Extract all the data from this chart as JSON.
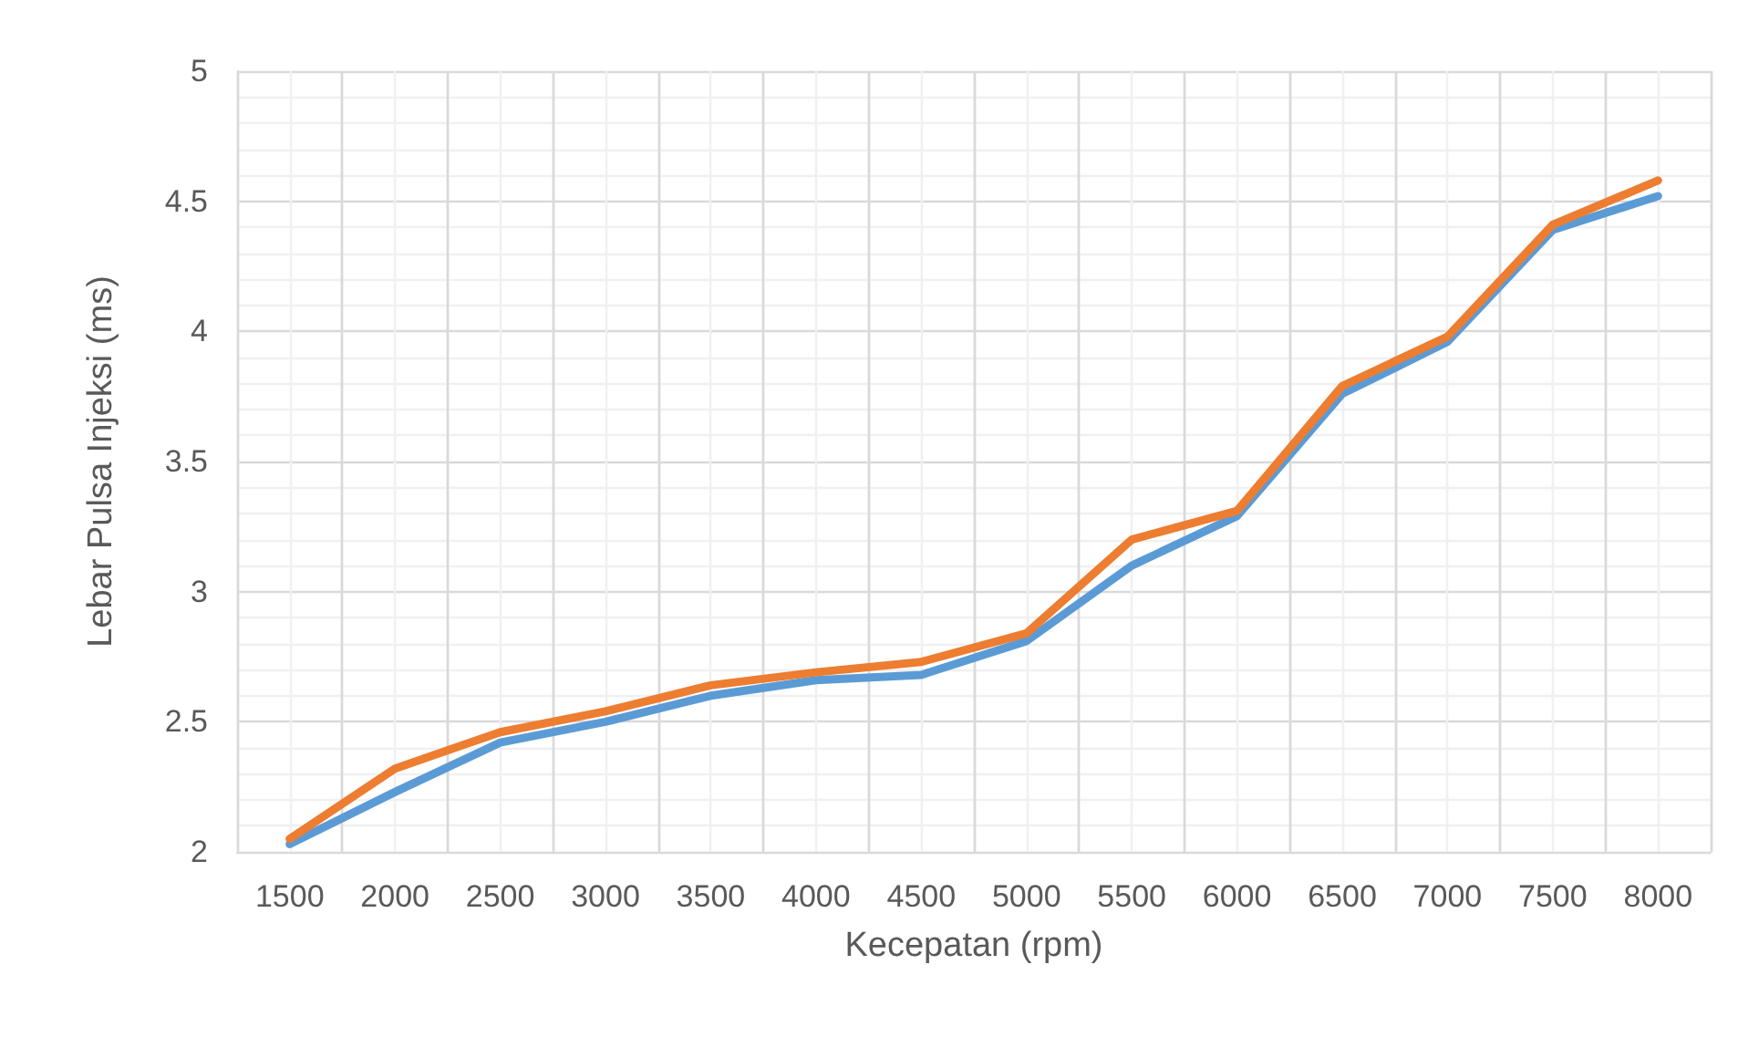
{
  "chart_data": {
    "type": "line",
    "xlabel": "Kecepatan (rpm)",
    "ylabel": "Lebar Pulsa Injeksi (ms)",
    "categories": [
      "1500",
      "2000",
      "2500",
      "3000",
      "3500",
      "4000",
      "4500",
      "5000",
      "5500",
      "6000",
      "6500",
      "7000",
      "7500",
      "8000"
    ],
    "series": [
      {
        "color": "#5b9bd5",
        "values": [
          2.03,
          2.23,
          2.42,
          2.5,
          2.6,
          2.66,
          2.68,
          2.81,
          3.1,
          3.29,
          3.76,
          3.96,
          4.39,
          4.52
        ]
      },
      {
        "color": "#ed7d31",
        "values": [
          2.05,
          2.32,
          2.46,
          2.54,
          2.64,
          2.69,
          2.73,
          2.84,
          3.2,
          3.31,
          3.79,
          3.98,
          4.41,
          4.58
        ]
      }
    ],
    "ylim": [
      2,
      5
    ],
    "yticks": [
      2,
      2.5,
      3,
      3.5,
      4,
      4.5,
      5
    ],
    "grid": true,
    "marker": "none",
    "line_style": "solid"
  }
}
